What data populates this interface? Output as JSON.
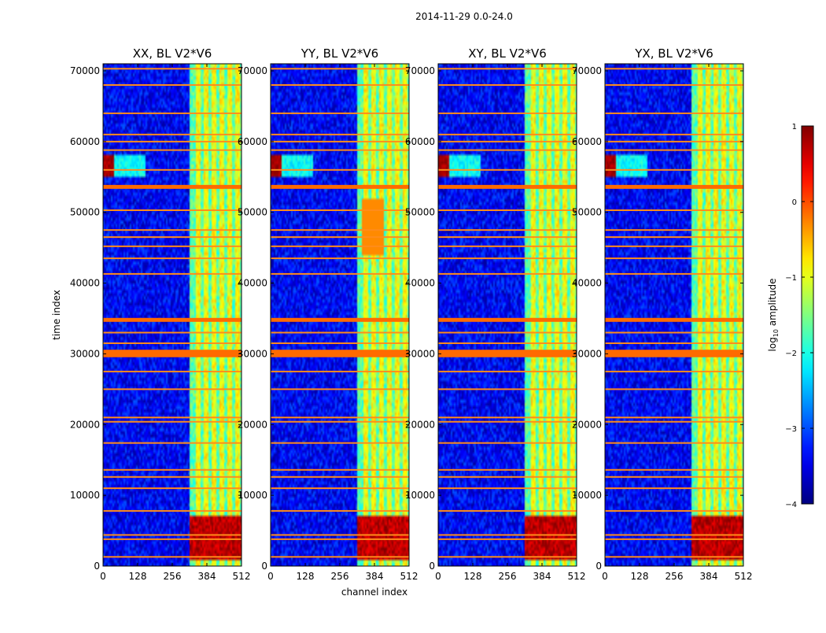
{
  "chart_data": {
    "type": "heatmap",
    "suptitle": "2014-11-29 0.0-24.0",
    "xlabel": "channel index",
    "ylabel": "time index",
    "xlim": [
      0,
      512
    ],
    "ylim": [
      0,
      71000
    ],
    "xticks": [
      0,
      128,
      256,
      384,
      512
    ],
    "yticks": [
      0,
      10000,
      20000,
      30000,
      40000,
      50000,
      60000,
      70000
    ],
    "panels": [
      {
        "title": "XX, BL V2*V6"
      },
      {
        "title": "YY, BL V2*V6"
      },
      {
        "title": "XY, BL V2*V6"
      },
      {
        "title": "YX, BL V2*V6"
      }
    ],
    "colorbar": {
      "label": "log₁₀ amplitude",
      "label_main": "log",
      "label_sub": "10",
      "label_rest": " amplitude",
      "range": [
        -4,
        1
      ],
      "ticks": [
        "−4",
        "−3",
        "−2",
        "−1",
        "0",
        "1"
      ],
      "colormap": "jet"
    },
    "features": {
      "background_level": -3.4,
      "band_channel_start": 320,
      "bright_channel_columns": [
        350,
        380,
        410,
        440,
        470,
        500
      ],
      "rfi_time_rows": [
        1300,
        3800,
        4400,
        7800,
        11000,
        12600,
        13600,
        17400,
        20400,
        21000,
        25000,
        27500,
        29800,
        30300,
        31500,
        33000,
        34800,
        41300,
        43500,
        45200,
        46500,
        47500,
        50300,
        53600,
        56000,
        58800,
        60000,
        61000,
        64000,
        68000,
        70300
      ],
      "strong_rfi_time_rows": [
        29800,
        30300,
        34800,
        53600
      ],
      "burst": {
        "channels": [
          0,
          40
        ],
        "time": [
          55000,
          58000
        ]
      },
      "low_time_saturation": {
        "channels": [
          320,
          512
        ],
        "time": [
          1000,
          7000
        ]
      }
    }
  }
}
